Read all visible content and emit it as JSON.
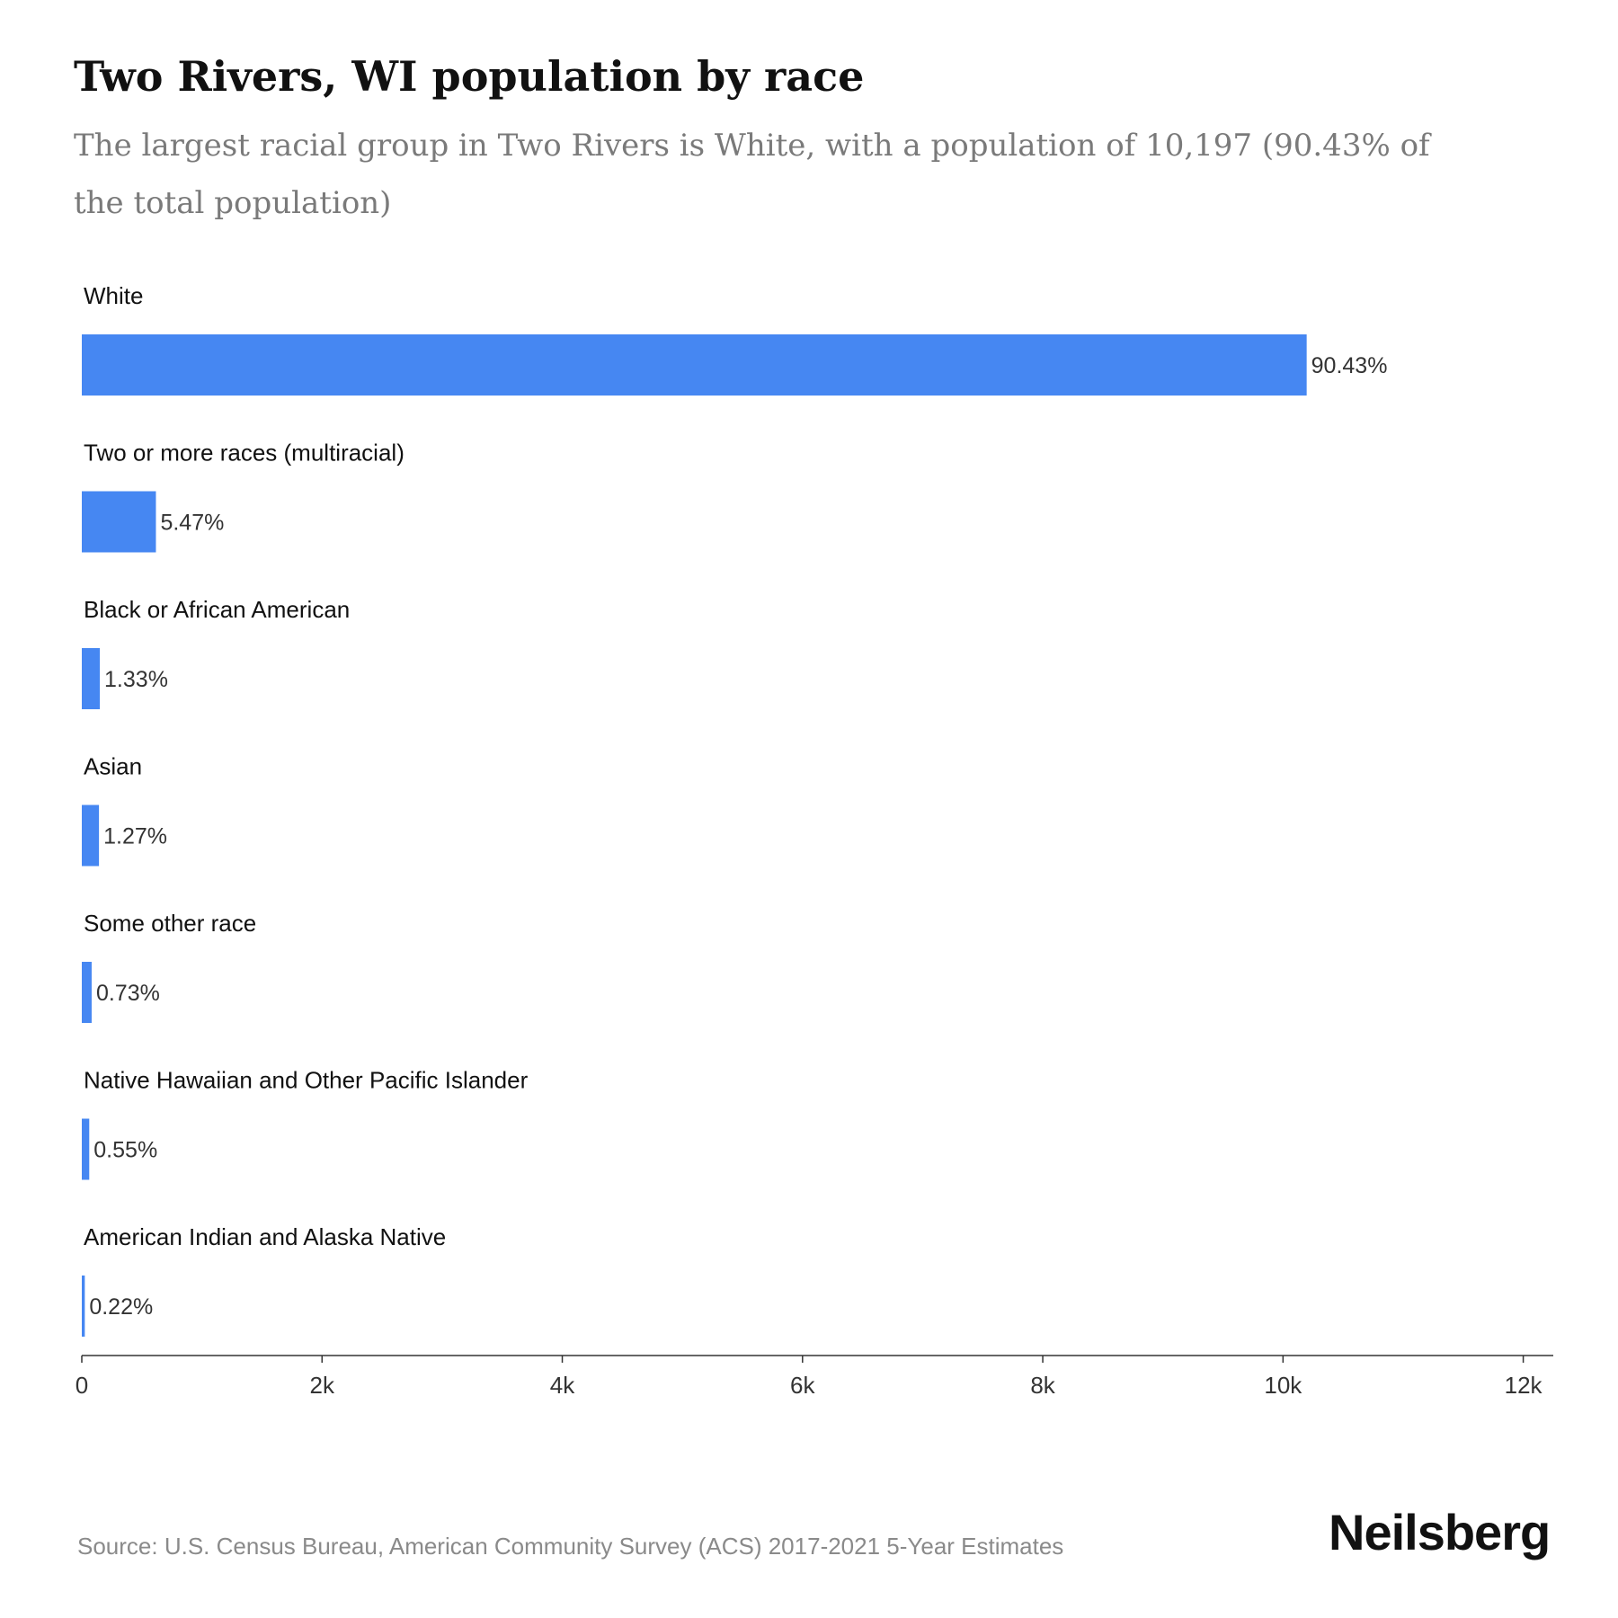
{
  "chart_data": {
    "type": "bar",
    "orientation": "horizontal",
    "title": "Two Rivers, WI population by race",
    "subtitle": "The largest racial group in Two Rivers is White, with a population of 10,197 (90.43% of the total population)",
    "categories": [
      "White",
      "Two or more races (multiracial)",
      "Black or African American",
      "Asian",
      "Some other race",
      "Native Hawaiian and Other Pacific Islander",
      "American Indian and Alaska Native"
    ],
    "values": [
      10197,
      617,
      150,
      143,
      82,
      62,
      25
    ],
    "data_labels": [
      "90.43%",
      "5.47%",
      "1.33%",
      "1.27%",
      "0.73%",
      "0.55%",
      "0.22%"
    ],
    "xlim": [
      0,
      12250
    ],
    "xticks": [
      0,
      2000,
      4000,
      6000,
      8000,
      10000,
      12000
    ],
    "xtick_labels": [
      "0",
      "2k",
      "4k",
      "6k",
      "8k",
      "10k",
      "12k"
    ],
    "xlabel": "",
    "ylabel": "",
    "grid": false,
    "legend": "none",
    "bar_color": "#4687f2",
    "axis_color": "#333333"
  },
  "footer": {
    "source": "Source: U.S. Census Bureau, American Community Survey (ACS) 2017-2021 5-Year Estimates",
    "brand": "Neilsberg"
  }
}
